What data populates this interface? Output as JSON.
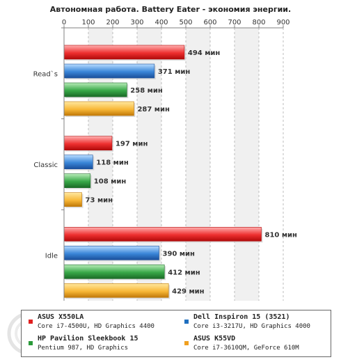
{
  "chart_data": {
    "type": "bar",
    "orientation": "horizontal",
    "title": "Автономная работа. Battery Eater - экономия энергии.",
    "categories": [
      "Read`s",
      "Classic",
      "Idle"
    ],
    "series": [
      {
        "name": "ASUS X550LA",
        "values": [
          494,
          197,
          810
        ],
        "labels": [
          "494 мин",
          "197 мин",
          "810 мин"
        ]
      },
      {
        "name": "Dell Inspiron 15 (3521)",
        "values": [
          371,
          118,
          390
        ],
        "labels": [
          "371 мин",
          "118 мин",
          "390 мин"
        ]
      },
      {
        "name": "HP Pavilion Sleekbook 15",
        "values": [
          258,
          108,
          412
        ],
        "labels": [
          "258 мин",
          "108 мин",
          "412 мин"
        ]
      },
      {
        "name": "ASUS K55VD",
        "values": [
          287,
          73,
          429
        ],
        "labels": [
          "287 мин",
          "73 мин",
          "429 мин"
        ]
      }
    ],
    "xlim": [
      0,
      900
    ],
    "xticks": [
      0,
      100,
      200,
      300,
      400,
      500,
      600,
      700,
      800,
      900
    ],
    "xtick_labels": [
      "0",
      "100",
      "200",
      "300",
      "400",
      "500",
      "600",
      "700",
      "800",
      "900"
    ],
    "x_axis_position": "top",
    "grid": true,
    "legend_position": "bottom"
  },
  "legend": [
    {
      "name": "ASUS X550LA",
      "spec": "Core i7-4500U, HD Graphics 4400",
      "color": "#e02020"
    },
    {
      "name": "Dell Inspiron 15 (3521)",
      "spec": "Core i3-3217U, HD Graphics 4000",
      "color": "#1f6fbf"
    },
    {
      "name": "HP Pavilion Sleekbook 15",
      "spec": "Pentium 987, HD Graphics",
      "color": "#2a9a3a"
    },
    {
      "name": "ASUS K55VD",
      "spec": "Core i7-3610QM, GeForce 610M",
      "color": "#f0a020"
    }
  ],
  "colors": {
    "series": [
      {
        "light": "#ffb0b0",
        "mid": "#ee3030",
        "dark": "#b00a0a"
      },
      {
        "light": "#b8dcff",
        "mid": "#3a86d8",
        "dark": "#1a4f9a"
      },
      {
        "light": "#b8ecb8",
        "mid": "#38a848",
        "dark": "#1a6a26"
      },
      {
        "light": "#ffe8a0",
        "mid": "#f8b838",
        "dark": "#c07808"
      }
    ],
    "band": "#f0f0f0",
    "grid": "#bdbdbd",
    "axis": "#808080",
    "label": "#333333"
  }
}
